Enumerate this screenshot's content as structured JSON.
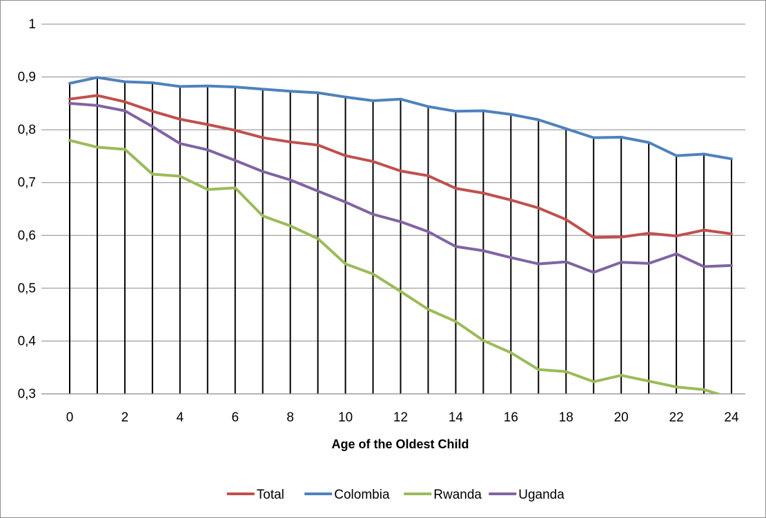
{
  "chart_data": {
    "type": "line",
    "title": "",
    "xlabel": "Age of the Oldest Child",
    "ylabel": "",
    "x": [
      0,
      1,
      2,
      3,
      4,
      5,
      6,
      7,
      8,
      9,
      10,
      11,
      12,
      13,
      14,
      15,
      16,
      17,
      18,
      19,
      20,
      21,
      22,
      23,
      24
    ],
    "x_tick_labels": [
      "0",
      "2",
      "4",
      "6",
      "8",
      "10",
      "12",
      "14",
      "16",
      "18",
      "20",
      "22",
      "24"
    ],
    "x_tick_values": [
      0,
      2,
      4,
      6,
      8,
      10,
      12,
      14,
      16,
      18,
      20,
      22,
      24
    ],
    "y_tick_labels": [
      "0,3",
      "0,4",
      "0,5",
      "0,6",
      "0,7",
      "0,8",
      "0,9",
      "1"
    ],
    "y_tick_values": [
      0.3,
      0.4,
      0.5,
      0.6,
      0.7,
      0.8,
      0.9,
      1.0
    ],
    "xlim": [
      0,
      24
    ],
    "ylim": [
      0.3,
      1.0
    ],
    "grid": "horizontal major gridlines; vertical drop lines at each x",
    "legend_position": "bottom",
    "series": [
      {
        "name": "Total",
        "color": "#c0504d",
        "values": [
          0.858,
          0.865,
          0.853,
          0.835,
          0.82,
          0.81,
          0.799,
          0.785,
          0.777,
          0.771,
          0.751,
          0.74,
          0.722,
          0.713,
          0.689,
          0.68,
          0.667,
          0.652,
          0.63,
          0.596,
          0.597,
          0.604,
          0.599,
          0.61,
          0.603
        ]
      },
      {
        "name": "Colombia",
        "color": "#4f81bd",
        "values": [
          0.888,
          0.899,
          0.891,
          0.889,
          0.882,
          0.883,
          0.881,
          0.877,
          0.873,
          0.87,
          0.862,
          0.855,
          0.858,
          0.844,
          0.835,
          0.836,
          0.829,
          0.819,
          0.802,
          0.785,
          0.786,
          0.776,
          0.751,
          0.754,
          0.745
        ]
      },
      {
        "name": "Rwanda",
        "color": "#9bbb59",
        "values": [
          0.78,
          0.767,
          0.763,
          0.716,
          0.712,
          0.687,
          0.69,
          0.637,
          0.618,
          0.594,
          0.546,
          0.527,
          0.494,
          0.46,
          0.437,
          0.401,
          0.378,
          0.346,
          0.342,
          0.323,
          0.335,
          0.324,
          0.313,
          0.308,
          0.292
        ]
      },
      {
        "name": "Uganda",
        "color": "#8064a2",
        "values": [
          0.85,
          0.846,
          0.836,
          0.806,
          0.774,
          0.762,
          0.742,
          0.721,
          0.705,
          0.684,
          0.663,
          0.64,
          0.626,
          0.607,
          0.579,
          0.571,
          0.558,
          0.546,
          0.55,
          0.53,
          0.549,
          0.547,
          0.565,
          0.541,
          0.543
        ]
      }
    ]
  }
}
